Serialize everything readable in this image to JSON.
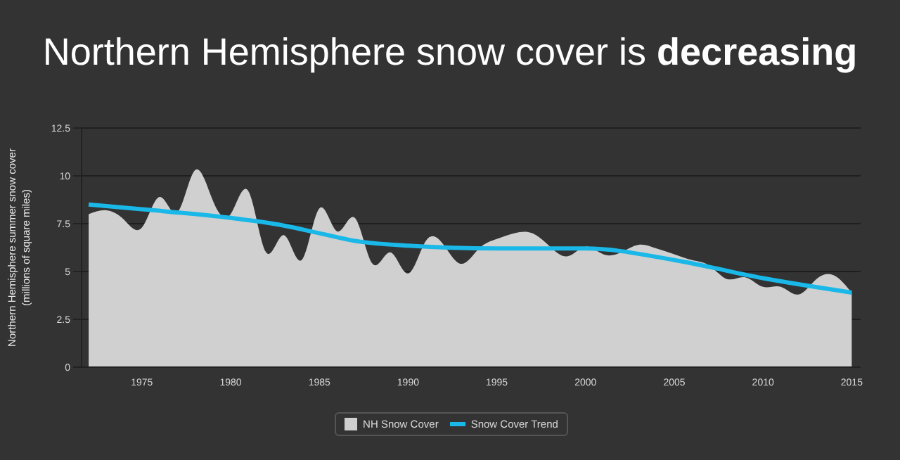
{
  "chart_data": {
    "type": "area",
    "title": "Northern Hemisphere snow cover is decreasing",
    "ylabel": "Northern Hemisphere summer snow cover\n(millions of square miles)",
    "x": [
      1972,
      1973,
      1974,
      1975,
      1976,
      1977,
      1978,
      1979,
      1980,
      1981,
      1982,
      1983,
      1984,
      1985,
      1986,
      1987,
      1988,
      1989,
      1990,
      1991,
      1992,
      1993,
      1994,
      1995,
      1996,
      1997,
      1998,
      1999,
      2000,
      2001,
      2002,
      2003,
      2004,
      2005,
      2006,
      2007,
      2008,
      2009,
      2010,
      2011,
      2012,
      2013,
      2014,
      2015
    ],
    "series": [
      {
        "name": "NH Snow Cover",
        "color": "#d0d0d0",
        "values": [
          8.0,
          8.2,
          7.7,
          7.3,
          8.9,
          8.1,
          10.3,
          8.7,
          8.0,
          9.2,
          6.0,
          6.9,
          5.6,
          8.3,
          7.1,
          7.8,
          5.4,
          6.0,
          4.9,
          6.6,
          6.4,
          5.4,
          6.2,
          6.7,
          7.0,
          7.0,
          6.3,
          5.8,
          6.3,
          5.9,
          6.0,
          6.4,
          6.2,
          5.9,
          5.6,
          5.3,
          4.6,
          4.7,
          4.2,
          4.2,
          3.8,
          4.6,
          4.8,
          3.9
        ]
      },
      {
        "name": "Snow Cover Trend",
        "type": "line",
        "color": "#1ab8e8",
        "x": [
          1972,
          1975,
          1980,
          1983,
          1985,
          1987,
          1990,
          1995,
          2000,
          2005,
          2010,
          2015
        ],
        "values": [
          8.5,
          8.25,
          7.8,
          7.4,
          7.0,
          6.6,
          6.35,
          6.2,
          6.2,
          5.6,
          4.65,
          3.9
        ]
      }
    ],
    "xlim": [
      1971.6,
      2015.5
    ],
    "xticks": [
      1975,
      1980,
      1985,
      1990,
      1995,
      2000,
      2005,
      2010,
      2015
    ],
    "ylim": [
      0,
      12.5
    ],
    "yticks": [
      0,
      2.5,
      5,
      7.5,
      10,
      12.5
    ],
    "grid": "y",
    "legend": "bottom",
    "marker": "none"
  }
}
